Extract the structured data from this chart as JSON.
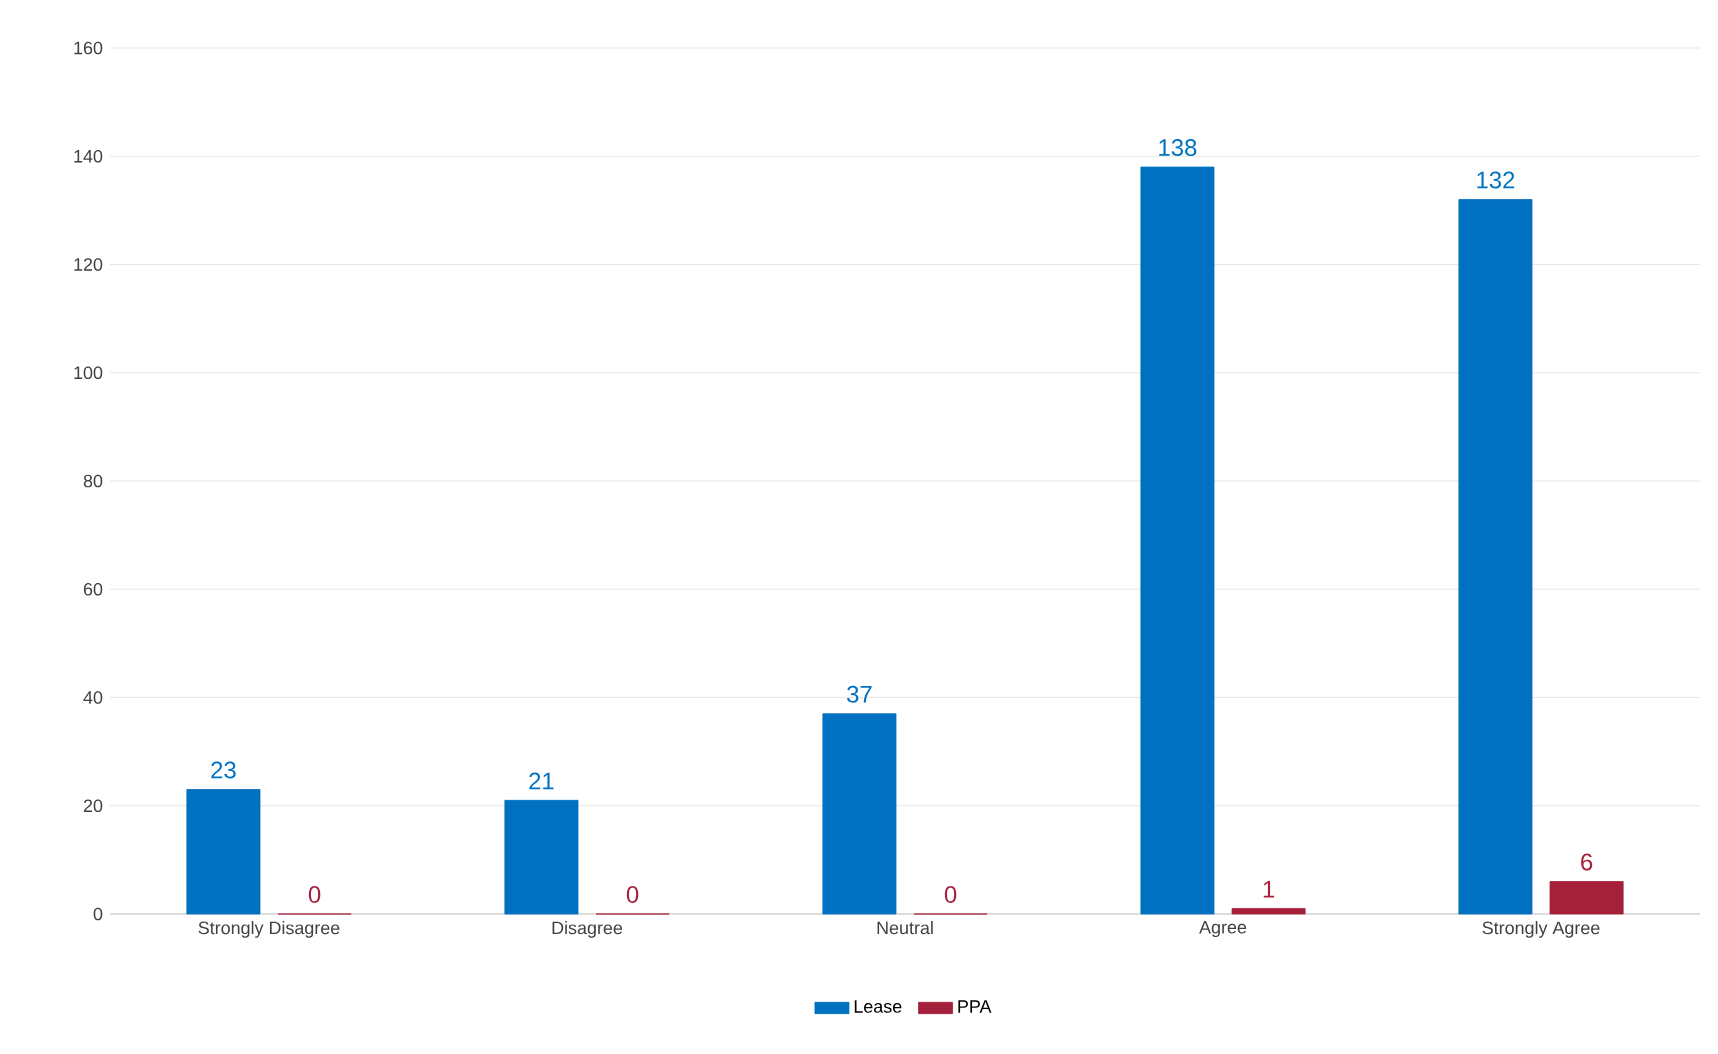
{
  "chart_data": {
    "type": "bar",
    "categories": [
      "Strongly Disagree",
      "Disagree",
      "Neutral",
      "Agree",
      "Strongly Agree"
    ],
    "series": [
      {
        "name": "Lease",
        "color": "#0070c0",
        "values": [
          23,
          21,
          37,
          138,
          132
        ]
      },
      {
        "name": "PPA",
        "color": "#a5203a",
        "values": [
          0,
          0,
          0,
          1,
          6
        ]
      }
    ],
    "ylim": [
      0,
      160
    ],
    "yticks": [
      0,
      20,
      40,
      60,
      80,
      100,
      120,
      140,
      160
    ],
    "grid": "y",
    "legend": "bottom",
    "data_labels": true
  }
}
